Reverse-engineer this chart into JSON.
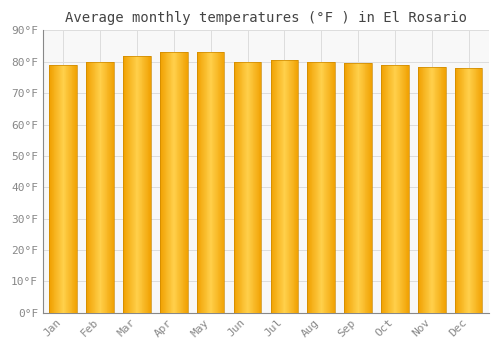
{
  "title": "Average monthly temperatures (°F ) in El Rosario",
  "months": [
    "Jan",
    "Feb",
    "Mar",
    "Apr",
    "May",
    "Jun",
    "Jul",
    "Aug",
    "Sep",
    "Oct",
    "Nov",
    "Dec"
  ],
  "values": [
    79.0,
    80.0,
    82.0,
    83.0,
    83.0,
    80.0,
    80.5,
    80.0,
    79.5,
    79.0,
    78.5,
    78.0
  ],
  "bar_color_center": "#FFD04B",
  "bar_color_edge": "#F0A000",
  "bar_outline_color": "#CC8800",
  "background_color": "#FFFFFF",
  "plot_bg_color": "#F8F8F8",
  "grid_color": "#DDDDDD",
  "ylim": [
    0,
    90
  ],
  "ytick_step": 10,
  "title_fontsize": 10,
  "tick_fontsize": 8,
  "tick_font": "monospace",
  "title_color": "#444444",
  "tick_color": "#888888"
}
